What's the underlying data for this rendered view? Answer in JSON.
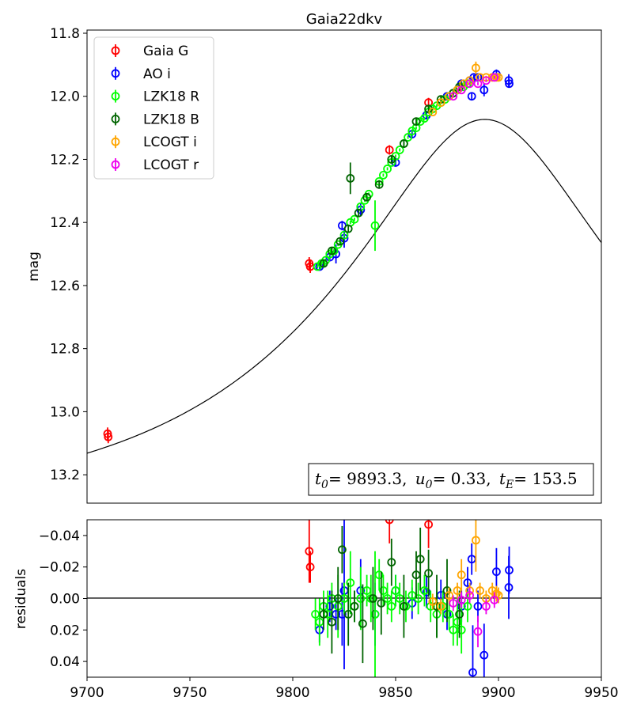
{
  "chart_data": [
    {
      "type": "scatter",
      "title": "Gaia22dkv",
      "xlabel": "",
      "ylabel": "mag",
      "xlim": [
        9700,
        9950
      ],
      "ylim": [
        13.29,
        11.79
      ],
      "y_inverted": true,
      "yticks": [
        "11.8",
        "12.0",
        "12.2",
        "12.4",
        "12.6",
        "12.8",
        "13.0",
        "13.2"
      ],
      "legend_position": "top-left",
      "annotation": {
        "t0_label": "t",
        "t0_sub": "0",
        "t0_value": "= 9893.3,",
        "u0_label": "u",
        "u0_sub": "0",
        "u0_value": "= 0.33,",
        "tE_label": "t",
        "tE_sub": "E",
        "tE_value": "= 153.5"
      },
      "model": {
        "t0": 9893.3,
        "u0": 0.33,
        "tE": 153.5,
        "baseline_mag": 13.32
      },
      "series": [
        {
          "name": "Gaia G",
          "color": "#ff0000",
          "points": [
            [
              9710,
              13.07,
              0.02
            ],
            [
              9710.3,
              13.08,
              0.02
            ],
            [
              9808,
              12.53,
              0.02
            ],
            [
              9808.5,
              12.54,
              0.02
            ],
            [
              9847,
              12.17,
              0.015
            ],
            [
              9866,
              12.02,
              0.015
            ]
          ]
        },
        {
          "name": "AO i",
          "color": "#0000ff",
          "points": [
            [
              9813,
              12.54,
              0.008
            ],
            [
              9818,
              12.51,
              0.008
            ],
            [
              9821,
              12.5,
              0.03
            ],
            [
              9824,
              12.41,
              0.015
            ],
            [
              9825,
              12.45,
              0.03
            ],
            [
              9833,
              12.36,
              0.02
            ],
            [
              9850,
              12.21,
              0.01
            ],
            [
              9858,
              12.12,
              0.01
            ],
            [
              9865,
              12.06,
              0.01
            ],
            [
              9875,
              12.0,
              0.008
            ],
            [
              9882,
              11.96,
              0.008
            ],
            [
              9886,
              11.95,
              0.01
            ],
            [
              9887,
              12.0,
              0.01
            ],
            [
              9888,
              11.94,
              0.008
            ],
            [
              9890,
              11.94,
              0.01
            ],
            [
              9893,
              11.98,
              0.02
            ],
            [
              9899,
              11.93,
              0.015
            ],
            [
              9905,
              11.95,
              0.02
            ],
            [
              9905.2,
              11.96,
              0.01
            ]
          ]
        },
        {
          "name": "LZK18 R",
          "color": "#00ff00",
          "points": [
            [
              9812,
              12.54,
              0.005
            ],
            [
              9814,
              12.53,
              0.005
            ],
            [
              9816,
              12.52,
              0.005
            ],
            [
              9818,
              12.5,
              0.005
            ],
            [
              9820,
              12.49,
              0.005
            ],
            [
              9822,
              12.47,
              0.005
            ],
            [
              9825,
              12.44,
              0.005
            ],
            [
              9828,
              12.4,
              0.005
            ],
            [
              9830,
              12.39,
              0.005
            ],
            [
              9833,
              12.35,
              0.005
            ],
            [
              9835,
              12.33,
              0.005
            ],
            [
              9837,
              12.31,
              0.005
            ],
            [
              9840,
              12.41,
              0.08
            ],
            [
              9842,
              12.27,
              0.005
            ],
            [
              9844,
              12.25,
              0.005
            ],
            [
              9846,
              12.23,
              0.005
            ],
            [
              9848,
              12.21,
              0.005
            ],
            [
              9850,
              12.19,
              0.005
            ],
            [
              9852,
              12.17,
              0.005
            ],
            [
              9854,
              12.15,
              0.005
            ],
            [
              9856,
              12.13,
              0.005
            ],
            [
              9858,
              12.11,
              0.005
            ],
            [
              9860,
              12.1,
              0.005
            ],
            [
              9862,
              12.08,
              0.005
            ],
            [
              9864,
              12.07,
              0.005
            ],
            [
              9866,
              12.05,
              0.005
            ],
            [
              9868,
              12.04,
              0.005
            ],
            [
              9870,
              12.03,
              0.005
            ],
            [
              9872,
              12.02,
              0.005
            ],
            [
              9874,
              12.01,
              0.005
            ],
            [
              9876,
              12.0,
              0.005
            ],
            [
              9878,
              11.99,
              0.005
            ],
            [
              9880,
              11.98,
              0.005
            ],
            [
              9883,
              11.97,
              0.005
            ],
            [
              9885,
              11.96,
              0.005
            ]
          ]
        },
        {
          "name": "LZK18 B",
          "color": "#006400",
          "points": [
            [
              9815,
              12.53,
              0.01
            ],
            [
              9819,
              12.49,
              0.01
            ],
            [
              9823,
              12.46,
              0.01
            ],
            [
              9827,
              12.42,
              0.01
            ],
            [
              9828,
              12.26,
              0.05
            ],
            [
              9832,
              12.37,
              0.01
            ],
            [
              9836,
              12.32,
              0.01
            ],
            [
              9842,
              12.28,
              0.01
            ],
            [
              9848,
              12.2,
              0.01
            ],
            [
              9854,
              12.15,
              0.01
            ],
            [
              9860,
              12.08,
              0.01
            ],
            [
              9866,
              12.04,
              0.01
            ],
            [
              9872,
              12.01,
              0.01
            ],
            [
              9878,
              11.99,
              0.01
            ],
            [
              9881,
              11.97,
              0.01
            ]
          ]
        },
        {
          "name": "LCOGT i",
          "color": "#ffa500",
          "points": [
            [
              9868,
              12.05,
              0.005
            ],
            [
              9872,
              12.02,
              0.005
            ],
            [
              9876,
              12.0,
              0.005
            ],
            [
              9880,
              11.98,
              0.005
            ],
            [
              9883,
              11.96,
              0.005
            ],
            [
              9886,
              11.95,
              0.005
            ],
            [
              9889,
              11.91,
              0.02
            ],
            [
              9891,
              11.94,
              0.005
            ],
            [
              9894,
              11.94,
              0.005
            ],
            [
              9897,
              11.94,
              0.005
            ],
            [
              9899,
              11.94,
              0.005
            ],
            [
              9900,
              11.94,
              0.005
            ]
          ]
        },
        {
          "name": "LCOGT r",
          "color": "#ee00ee",
          "points": [
            [
              9878,
              12.0,
              0.005
            ],
            [
              9882,
              11.98,
              0.005
            ],
            [
              9886,
              11.96,
              0.005
            ],
            [
              9890,
              11.96,
              0.005
            ],
            [
              9894,
              11.95,
              0.005
            ],
            [
              9898,
              11.94,
              0.005
            ]
          ]
        }
      ]
    },
    {
      "type": "scatter",
      "title": "",
      "xlabel": "",
      "ylabel": "residuals",
      "xlim": [
        9700,
        9950
      ],
      "xticks": [
        "9700",
        "9750",
        "9800",
        "9850",
        "9900",
        "9950"
      ],
      "ylim": [
        0.05,
        -0.05
      ],
      "y_inverted": true,
      "yticks": [
        "−0.04",
        "−0.02",
        "0.00",
        "0.02",
        "0.04"
      ],
      "zero_line": 0,
      "series": [
        {
          "name": "Gaia G",
          "points": [
            [
              9808,
              -0.03,
              0.02
            ],
            [
              9808.5,
              -0.02,
              0.01
            ],
            [
              9847,
              -0.05,
              0.015
            ],
            [
              9866,
              -0.047,
              0.015
            ]
          ]
        },
        {
          "name": "AO i",
          "points": [
            [
              9813,
              0.02,
              0.008
            ],
            [
              9818,
              0.005,
              0.01
            ],
            [
              9821,
              0.01,
              0.01
            ],
            [
              9824,
              0.01,
              0.02
            ],
            [
              9825,
              -0.005,
              0.05
            ],
            [
              9833,
              -0.005,
              0.02
            ],
            [
              9840,
              0.01,
              0.02
            ],
            [
              9850,
              -0.005,
              0.01
            ],
            [
              9858,
              0.003,
              0.01
            ],
            [
              9865,
              -0.004,
              0.01
            ],
            [
              9872,
              -0.002,
              0.01
            ],
            [
              9875,
              0.01,
              0.01
            ],
            [
              9882,
              0.005,
              0.01
            ],
            [
              9885,
              -0.01,
              0.01
            ],
            [
              9887,
              -0.025,
              0.01
            ],
            [
              9887.5,
              0.047,
              0.03
            ],
            [
              9890,
              0.005,
              0.01
            ],
            [
              9893,
              0.036,
              0.02
            ],
            [
              9899,
              -0.017,
              0.015
            ],
            [
              9905,
              -0.007,
              0.02
            ],
            [
              9905.2,
              -0.018,
              0.015
            ]
          ]
        },
        {
          "name": "LZK18 R",
          "points": [
            [
              9811,
              0.01,
              0.01
            ],
            [
              9813,
              0.015,
              0.015
            ],
            [
              9815,
              0.005,
              0.01
            ],
            [
              9817,
              0.01,
              0.015
            ],
            [
              9819,
              0.0,
              0.01
            ],
            [
              9822,
              0.005,
              0.02
            ],
            [
              9825,
              0.0,
              0.01
            ],
            [
              9828,
              -0.01,
              0.02
            ],
            [
              9830,
              0.005,
              0.01
            ],
            [
              9833,
              0.0,
              0.02
            ],
            [
              9836,
              -0.005,
              0.01
            ],
            [
              9838,
              0.0,
              0.015
            ],
            [
              9840,
              0.01,
              0.04
            ],
            [
              9842,
              -0.015,
              0.01
            ],
            [
              9844,
              -0.005,
              0.01
            ],
            [
              9846,
              0.0,
              0.01
            ],
            [
              9848,
              0.005,
              0.01
            ],
            [
              9850,
              -0.005,
              0.01
            ],
            [
              9852,
              0.0,
              0.01
            ],
            [
              9855,
              0.005,
              0.01
            ],
            [
              9858,
              -0.002,
              0.01
            ],
            [
              9861,
              0.0,
              0.01
            ],
            [
              9864,
              -0.005,
              0.01
            ],
            [
              9867,
              0.005,
              0.01
            ],
            [
              9870,
              0.01,
              0.015
            ],
            [
              9873,
              0.005,
              0.01
            ],
            [
              9876,
              0.01,
              0.01
            ],
            [
              9878,
              0.02,
              0.01
            ],
            [
              9880,
              0.015,
              0.015
            ],
            [
              9882,
              0.02,
              0.015
            ],
            [
              9885,
              0.005,
              0.01
            ]
          ]
        },
        {
          "name": "LZK18 B",
          "points": [
            [
              9815,
              0.01,
              0.01
            ],
            [
              9819,
              0.015,
              0.02
            ],
            [
              9822,
              0.0,
              0.02
            ],
            [
              9824,
              -0.031,
              0.015
            ],
            [
              9827,
              0.01,
              0.02
            ],
            [
              9830,
              0.005,
              0.01
            ],
            [
              9834,
              0.016,
              0.025
            ],
            [
              9839,
              0.0,
              0.02
            ],
            [
              9843,
              0.003,
              0.02
            ],
            [
              9848,
              -0.023,
              0.015
            ],
            [
              9854,
              0.005,
              0.02
            ],
            [
              9860,
              -0.015,
              0.015
            ],
            [
              9862,
              -0.025,
              0.02
            ],
            [
              9866,
              -0.016,
              0.015
            ],
            [
              9870,
              0.005,
              0.02
            ],
            [
              9875,
              -0.005,
              0.02
            ],
            [
              9881,
              0.01,
              0.015
            ]
          ]
        },
        {
          "name": "LCOGT i",
          "points": [
            [
              9868,
              0.002,
              0.005
            ],
            [
              9872,
              0.005,
              0.005
            ],
            [
              9876,
              -0.002,
              0.005
            ],
            [
              9880,
              -0.005,
              0.005
            ],
            [
              9882,
              -0.015,
              0.01
            ],
            [
              9886,
              -0.005,
              0.005
            ],
            [
              9889,
              -0.037,
              0.02
            ],
            [
              9891,
              -0.005,
              0.005
            ],
            [
              9894,
              0.0,
              0.005
            ],
            [
              9897,
              -0.005,
              0.005
            ],
            [
              9899,
              -0.003,
              0.005
            ],
            [
              9900,
              -0.002,
              0.005
            ]
          ]
        },
        {
          "name": "LCOGT r",
          "points": [
            [
              9878,
              0.003,
              0.005
            ],
            [
              9882,
              0.001,
              0.005
            ],
            [
              9886,
              -0.002,
              0.005
            ],
            [
              9890,
              0.021,
              0.01
            ],
            [
              9894,
              0.005,
              0.005
            ],
            [
              9898,
              0.001,
              0.005
            ]
          ]
        }
      ]
    }
  ]
}
